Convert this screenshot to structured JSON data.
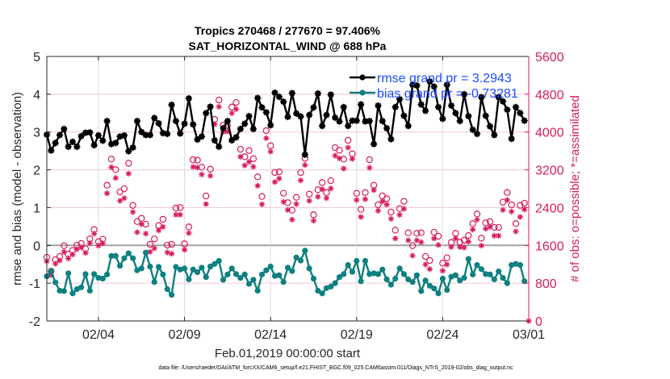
{
  "chart_data": {
    "type": "line",
    "title": [
      "Tropics 270468 / 277670 = 97.406%",
      "SAT_HORIZONTAL_WIND @ 688 hPa"
    ],
    "xlabel": "Feb.01,2019 00:00:00 start",
    "ylabel_left": "rmse and bias (model - observation)",
    "ylabel_right": "# of obs: o=possible; *=assimilated",
    "footnote": "data file: /Users/raeder/DAI/ATM_forcXX/CAM6_setup/f.e21.FHIST_BGC.f09_025.CAM6assim.011/Diags_NTrS_2019-02/obs_diag_output.nc",
    "xlim": [
      "2019-02-01 00:00",
      "2019-03-01 00:00"
    ],
    "xticks": [
      {
        "date": "2019-02-04 00:00",
        "label": "02/04"
      },
      {
        "date": "2019-02-09 00:00",
        "label": "02/09"
      },
      {
        "date": "2019-02-14 00:00",
        "label": "02/14"
      },
      {
        "date": "2019-02-19 00:00",
        "label": "02/19"
      },
      {
        "date": "2019-02-24 00:00",
        "label": "02/24"
      },
      {
        "date": "2019-03-01 00:00",
        "label": "03/01"
      }
    ],
    "ylim_left": [
      -2,
      5
    ],
    "yticks_left": [
      "-2",
      "-1",
      "0",
      "1",
      "2",
      "3",
      "4",
      "5"
    ],
    "ylim_right": [
      0,
      5600
    ],
    "yticks_right": [
      "0",
      "800",
      "1600",
      "2400",
      "3200",
      "4000",
      "4800",
      "5600"
    ],
    "grid": true,
    "legend_position": "top-right",
    "colors": {
      "rmse": "#000000",
      "bias": "#0f8080",
      "obs": "#d81b60",
      "legend_text": "#1a4cff",
      "zero_line": "#a0a0a0",
      "grid": "#f2c6d6"
    },
    "x": [
      "2019-02-01 00:00",
      "2019-02-01 06:00",
      "2019-02-01 12:00",
      "2019-02-01 18:00",
      "2019-02-02 00:00",
      "2019-02-02 06:00",
      "2019-02-02 12:00",
      "2019-02-02 18:00",
      "2019-02-03 00:00",
      "2019-02-03 06:00",
      "2019-02-03 12:00",
      "2019-02-03 18:00",
      "2019-02-04 00:00",
      "2019-02-04 06:00",
      "2019-02-04 12:00",
      "2019-02-04 18:00",
      "2019-02-05 00:00",
      "2019-02-05 06:00",
      "2019-02-05 12:00",
      "2019-02-05 18:00",
      "2019-02-06 00:00",
      "2019-02-06 06:00",
      "2019-02-06 12:00",
      "2019-02-06 18:00",
      "2019-02-07 00:00",
      "2019-02-07 06:00",
      "2019-02-07 12:00",
      "2019-02-07 18:00",
      "2019-02-08 00:00",
      "2019-02-08 06:00",
      "2019-02-08 12:00",
      "2019-02-08 18:00",
      "2019-02-09 00:00",
      "2019-02-09 06:00",
      "2019-02-09 12:00",
      "2019-02-09 18:00",
      "2019-02-10 00:00",
      "2019-02-10 06:00",
      "2019-02-10 12:00",
      "2019-02-10 18:00",
      "2019-02-11 00:00",
      "2019-02-11 06:00",
      "2019-02-11 12:00",
      "2019-02-11 18:00",
      "2019-02-12 00:00",
      "2019-02-12 06:00",
      "2019-02-12 12:00",
      "2019-02-12 18:00",
      "2019-02-13 00:00",
      "2019-02-13 06:00",
      "2019-02-13 12:00",
      "2019-02-13 18:00",
      "2019-02-14 00:00",
      "2019-02-14 06:00",
      "2019-02-14 12:00",
      "2019-02-14 18:00",
      "2019-02-15 00:00",
      "2019-02-15 06:00",
      "2019-02-15 12:00",
      "2019-02-15 18:00",
      "2019-02-16 00:00",
      "2019-02-16 06:00",
      "2019-02-16 12:00",
      "2019-02-16 18:00",
      "2019-02-17 00:00",
      "2019-02-17 06:00",
      "2019-02-17 12:00",
      "2019-02-17 18:00",
      "2019-02-18 00:00",
      "2019-02-18 06:00",
      "2019-02-18 12:00",
      "2019-02-18 18:00",
      "2019-02-19 00:00",
      "2019-02-19 06:00",
      "2019-02-19 12:00",
      "2019-02-19 18:00",
      "2019-02-20 00:00",
      "2019-02-20 06:00",
      "2019-02-20 12:00",
      "2019-02-20 18:00",
      "2019-02-21 00:00",
      "2019-02-21 06:00",
      "2019-02-21 12:00",
      "2019-02-21 18:00",
      "2019-02-22 00:00",
      "2019-02-22 06:00",
      "2019-02-22 12:00",
      "2019-02-22 18:00",
      "2019-02-23 00:00",
      "2019-02-23 06:00",
      "2019-02-23 12:00",
      "2019-02-23 18:00",
      "2019-02-24 00:00",
      "2019-02-24 06:00",
      "2019-02-24 12:00",
      "2019-02-24 18:00",
      "2019-02-25 00:00",
      "2019-02-25 06:00",
      "2019-02-25 12:00",
      "2019-02-25 18:00",
      "2019-02-26 00:00",
      "2019-02-26 06:00",
      "2019-02-26 12:00",
      "2019-02-26 18:00",
      "2019-02-27 00:00",
      "2019-02-27 06:00",
      "2019-02-27 12:00",
      "2019-02-27 18:00",
      "2019-02-28 00:00",
      "2019-02-28 06:00",
      "2019-02-28 12:00",
      "2019-02-28 18:00",
      "2019-03-01 00:00"
    ],
    "series": [
      {
        "name": "rmse grand pr = 3.2943",
        "axis": "left",
        "marker": "asterisk-dot",
        "values": [
          2.93,
          2.51,
          2.71,
          2.92,
          3.08,
          2.61,
          2.74,
          2.61,
          2.89,
          2.98,
          2.99,
          2.65,
          2.91,
          2.77,
          3.29,
          2.68,
          2.71,
          2.88,
          2.91,
          2.49,
          2.59,
          3.29,
          3.0,
          2.92,
          2.92,
          3.37,
          3.23,
          2.97,
          2.95,
          3.72,
          3.29,
          2.96,
          3.22,
          3.89,
          3.2,
          2.8,
          2.88,
          3.5,
          3.67,
          2.78,
          2.61,
          3.1,
          3.29,
          2.78,
          2.86,
          3.08,
          3.22,
          3.42,
          3.08,
          3.9,
          3.65,
          3.52,
          3.18,
          4.04,
          3.93,
          3.8,
          3.4,
          4.03,
          3.49,
          3.41,
          2.4,
          3.45,
          3.65,
          4.02,
          3.16,
          3.45,
          3.99,
          3.38,
          3.28,
          3.66,
          3.16,
          3.3,
          3.3,
          3.73,
          3.28,
          3.29,
          2.68,
          3.7,
          3.29,
          3.1,
          2.81,
          3.66,
          3.87,
          3.43,
          3.16,
          4.25,
          4.23,
          3.73,
          3.56,
          4.34,
          4.2,
          3.66,
          3.35,
          4.25,
          3.7,
          3.5,
          3.29,
          4.0,
          3.42,
          3.06,
          2.95,
          3.92,
          3.43,
          3.15,
          2.92,
          3.92,
          3.81,
          3.59,
          2.82,
          3.66,
          3.5,
          3.3,
          null
        ]
      },
      {
        "name": "bias grand pr = -0.73281",
        "axis": "left",
        "marker": "dot",
        "values": [
          -0.82,
          -0.68,
          -0.98,
          -1.2,
          -1.21,
          -0.74,
          -1.27,
          -1.16,
          -1.11,
          -0.76,
          -1.2,
          -0.76,
          -0.86,
          -0.88,
          -0.77,
          -0.28,
          -0.28,
          -0.54,
          -0.34,
          -0.21,
          -0.34,
          -0.66,
          -0.61,
          -0.19,
          -0.56,
          -0.97,
          -0.57,
          -0.77,
          -1.16,
          -1.31,
          -0.57,
          -0.64,
          -0.61,
          -0.9,
          -0.64,
          -0.71,
          -0.59,
          -0.84,
          -0.56,
          -0.49,
          -0.41,
          -0.91,
          -0.77,
          -0.61,
          -0.76,
          -0.86,
          -0.77,
          -1.02,
          -0.91,
          -1.2,
          -0.77,
          -0.66,
          -0.56,
          -0.81,
          -0.79,
          -0.97,
          -0.59,
          -0.68,
          -0.32,
          -0.4,
          -0.14,
          -0.61,
          -0.88,
          -1.2,
          -1.27,
          -1.13,
          -1.09,
          -1.0,
          -0.84,
          -0.76,
          -0.52,
          -0.7,
          -0.41,
          -0.95,
          -0.41,
          -0.76,
          -0.74,
          -0.76,
          -0.64,
          -0.9,
          -1.04,
          -0.88,
          -0.61,
          -0.76,
          -0.9,
          -0.97,
          -0.79,
          -1.21,
          -0.93,
          -1.07,
          -1.14,
          -1.27,
          -0.88,
          -1.18,
          -0.83,
          -0.79,
          -0.93,
          -0.86,
          -0.36,
          -0.77,
          -0.52,
          -0.63,
          -0.76,
          -0.77,
          -0.9,
          -0.69,
          -0.86,
          -1.0,
          -0.52,
          -0.49,
          -0.52,
          -0.95,
          null
        ]
      },
      {
        "name": "possible",
        "axis": "right",
        "marker": "circle",
        "values": [
          1314,
          1019,
          1263,
          1331,
          1559,
          1377,
          1457,
          1570,
          1605,
          1491,
          1702,
          1900,
          1645,
          1696,
          2839,
          3392,
          3170,
          2697,
          2765,
          3306,
          2412,
          2071,
          2139,
          2014,
          1588,
          1702,
          1985,
          2117,
          1570,
          1588,
          2356,
          2367,
          1599,
          1958,
          3380,
          3370,
          3221,
          2612,
          3180,
          4233,
          4643,
          4109,
          4109,
          4495,
          4592,
          3602,
          3443,
          3573,
          3402,
          3016,
          2600,
          3994,
          3675,
          3107,
          3124,
          2669,
          2470,
          2310,
          2583,
          3107,
          3408,
          2651,
          2213,
          2743,
          2896,
          2685,
          2936,
          3636,
          3579,
          3392,
          3790,
          3505,
          2668,
          2327,
          2685,
          3380,
          2839,
          2424,
          2612,
          2555,
          2270,
          1889,
          2344,
          2498,
          1832,
          1559,
          1821,
          1832,
          1331,
          1246,
          1843,
          1758,
          1189,
          1303,
          1627,
          1821,
          1633,
          1673,
          1775,
          2026,
          2231,
          1718,
          2043,
          2071,
          1946,
          1946,
          2481,
          2685,
          2424,
          2026,
          2412,
          2458,
          0
        ]
      },
      {
        "name": "assimilated",
        "axis": "right",
        "marker": "asterisk",
        "values": [
          1314,
          1019,
          1263,
          1331,
          1513,
          1377,
          1457,
          1570,
          1605,
          1491,
          1702,
          1900,
          1645,
          1696,
          2754,
          3306,
          3078,
          2595,
          2651,
          3170,
          2356,
          1929,
          2100,
          1900,
          1514,
          1588,
          1968,
          2043,
          1502,
          1474,
          2300,
          2300,
          1559,
          1912,
          3312,
          3300,
          3153,
          2526,
          3124,
          4216,
          4586,
          4052,
          4063,
          4450,
          4535,
          3528,
          3345,
          3420,
          3317,
          2914,
          2520,
          3921,
          3636,
          2993,
          3067,
          2572,
          2400,
          2196,
          2527,
          3027,
          3352,
          2595,
          2173,
          2680,
          2839,
          2651,
          2856,
          3551,
          3494,
          3277,
          3721,
          3482,
          2612,
          2253,
          2630,
          3295,
          2822,
          2384,
          2583,
          2515,
          2213,
          1798,
          2298,
          2424,
          1758,
          1434,
          1758,
          1718,
          1246,
          1149,
          1798,
          1661,
          1115,
          1246,
          1616,
          1798,
          1616,
          1605,
          1730,
          1986,
          2196,
          1645,
          2003,
          2043,
          1855,
          1855,
          2401,
          2612,
          2367,
          1946,
          2253,
          2412,
          0
        ]
      }
    ]
  }
}
